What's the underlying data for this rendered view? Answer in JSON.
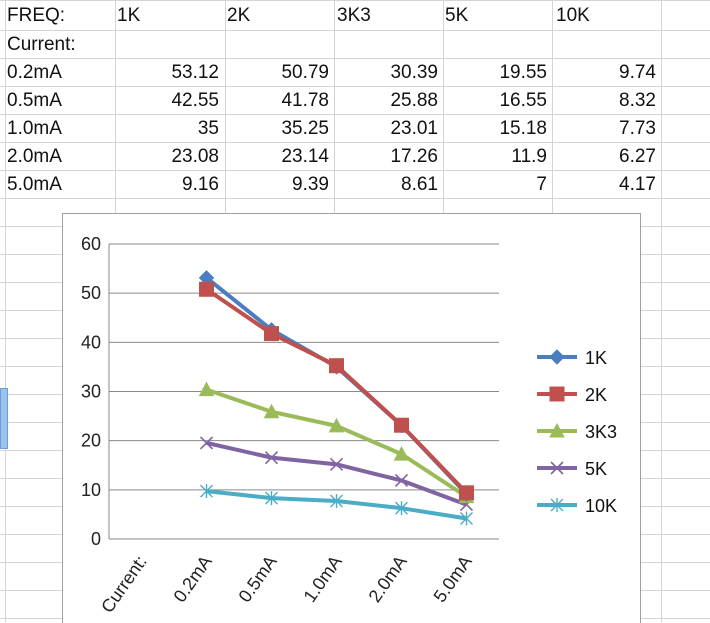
{
  "sheet": {
    "header": [
      "FREQ:",
      "1K",
      "2K",
      "3K3",
      "5K",
      "10K"
    ],
    "row_label_current": "Current:",
    "rows": [
      {
        "label": "0.2mA",
        "values": [
          "53.12",
          "50.79",
          "30.39",
          "19.55",
          "9.74"
        ]
      },
      {
        "label": "0.5mA",
        "values": [
          "42.55",
          "41.78",
          "25.88",
          "16.55",
          "8.32"
        ]
      },
      {
        "label": "1.0mA",
        "values": [
          "35",
          "35.25",
          "23.01",
          "15.18",
          "7.73"
        ]
      },
      {
        "label": "2.0mA",
        "values": [
          "23.08",
          "23.14",
          "17.26",
          "11.9",
          "6.27"
        ]
      },
      {
        "label": "5.0mA",
        "values": [
          "9.16",
          "9.39",
          "8.61",
          "7",
          "4.17"
        ]
      }
    ]
  },
  "chart_data": {
    "type": "line",
    "categories": [
      "Current:",
      "0.2mA",
      "0.5mA",
      "1.0mA",
      "2.0mA",
      "5.0mA"
    ],
    "ylim": [
      0,
      60
    ],
    "yticks": [
      0,
      10,
      20,
      30,
      40,
      50,
      60
    ],
    "grid": true,
    "legend": "right",
    "series": [
      {
        "name": "1K",
        "color": "#4a7ebf",
        "marker": "diamond",
        "values": [
          null,
          53.12,
          42.55,
          35,
          23.08,
          9.16
        ]
      },
      {
        "name": "2K",
        "color": "#c0504d",
        "marker": "square",
        "values": [
          null,
          50.79,
          41.78,
          35.25,
          23.14,
          9.39
        ]
      },
      {
        "name": "3K3",
        "color": "#9bbb59",
        "marker": "triangle",
        "values": [
          null,
          30.39,
          25.88,
          23.01,
          17.26,
          8.61
        ]
      },
      {
        "name": "5K",
        "color": "#8064a2",
        "marker": "x",
        "values": [
          null,
          19.55,
          16.55,
          15.18,
          11.9,
          7
        ]
      },
      {
        "name": "10K",
        "color": "#4bacc6",
        "marker": "star",
        "values": [
          null,
          9.74,
          8.32,
          7.73,
          6.27,
          4.17
        ]
      }
    ]
  }
}
